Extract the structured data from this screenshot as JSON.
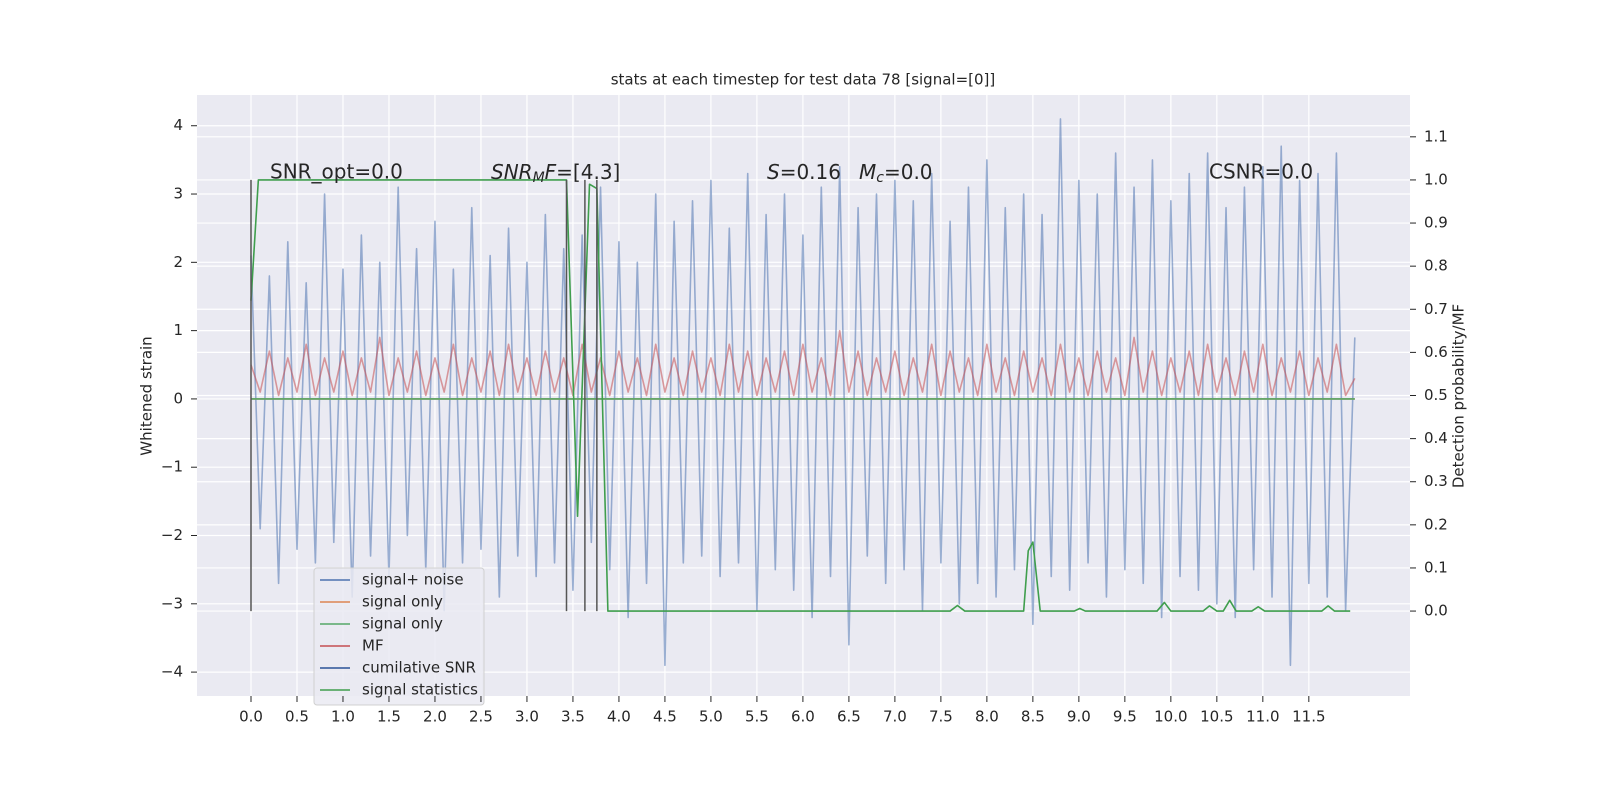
{
  "chart_data": {
    "type": "line",
    "title": "stats at each timestep for test data 78 [signal=[0]]",
    "y_label": "Whitened strain",
    "y2_label": "Detection probability/MF",
    "annotations": {
      "snr_opt": "SNR_opt=0.0",
      "snr_mf": [
        "SNR",
        "M",
        "F",
        "=[4.3]"
      ],
      "s_mc": [
        "S",
        "=0.16",
        "M",
        "c",
        "=0.0"
      ],
      "csnr": "CSNR=0.0"
    },
    "xlim": [
      -0.587,
      12.6
    ],
    "ylim": [
      -4.35,
      4.45
    ],
    "y2lim": [
      -0.197,
      1.197
    ],
    "xticks": [
      {
        "value": 0,
        "label": "0.0"
      },
      0.5,
      {
        "value": 1,
        "label": "1.0"
      },
      1.5,
      {
        "value": 2,
        "label": "2.0"
      },
      2.5,
      {
        "value": 3,
        "label": "3.0"
      },
      3.5,
      {
        "value": 4,
        "label": "4.0"
      },
      4.5,
      {
        "value": 5,
        "label": "5.0"
      },
      5.5,
      {
        "value": 6,
        "label": "6.0"
      },
      6.5,
      {
        "value": 7,
        "label": "7.0"
      },
      7.5,
      {
        "value": 8,
        "label": "8.0"
      },
      8.5,
      {
        "value": 9,
        "label": "9.0"
      },
      9.5,
      {
        "value": 10,
        "label": "10.0"
      },
      10.5,
      {
        "value": 11,
        "label": "11.0"
      },
      11.5
    ],
    "yticks": [
      {
        "value": -4,
        "label": "−4"
      },
      {
        "value": -3,
        "label": "−3"
      },
      {
        "value": -2,
        "label": "−2"
      },
      {
        "value": -1,
        "label": "−1"
      },
      0,
      1,
      2,
      3,
      4
    ],
    "y2ticks": [
      {
        "value": 0,
        "label": "0.0"
      },
      0.1,
      0.2,
      0.3,
      0.4,
      0.5,
      0.6,
      0.7,
      0.8,
      0.9,
      {
        "value": 1,
        "label": "1.0"
      },
      1.1
    ],
    "grid": true,
    "legend": "lower left",
    "x": [
      0,
      0.1,
      0.2,
      0.3,
      0.4,
      0.5,
      0.6,
      0.7,
      0.8,
      0.9,
      1,
      1.1,
      1.2,
      1.3,
      1.4,
      1.5,
      1.6,
      1.7,
      1.8,
      1.9,
      2,
      2.1,
      2.2,
      2.3,
      2.4,
      2.5,
      2.6,
      2.7,
      2.8,
      2.9,
      3,
      3.1,
      3.2,
      3.3,
      3.4,
      3.5,
      3.6,
      3.7,
      3.8,
      3.9,
      4,
      4.1,
      4.2,
      4.3,
      4.4,
      4.5,
      4.6,
      4.7,
      4.8,
      4.9,
      5,
      5.1,
      5.2,
      5.3,
      5.4,
      5.5,
      5.6,
      5.7,
      5.8,
      5.9,
      6,
      6.1,
      6.2,
      6.3,
      6.4,
      6.5,
      6.6,
      6.7,
      6.8,
      6.9,
      7,
      7.1,
      7.2,
      7.3,
      7.4,
      7.5,
      7.6,
      7.7,
      7.8,
      7.9,
      8,
      8.1,
      8.2,
      8.3,
      8.4,
      8.5,
      8.6,
      8.7,
      8.8,
      8.9,
      9,
      9.1,
      9.2,
      9.3,
      9.4,
      9.5,
      9.6,
      9.7,
      9.8,
      9.9,
      10,
      10.1,
      10.2,
      10.3,
      10.4,
      10.5,
      10.6,
      10.7,
      10.8,
      10.9,
      11,
      11.1,
      11.2,
      11.3,
      11.4,
      11.5,
      11.6,
      11.7,
      11.8,
      11.9,
      12
    ],
    "series": [
      {
        "name": "signal+ noise",
        "color": "#4c72b0",
        "opacity": 0.55,
        "values": [
          2.1,
          -1.9,
          1.8,
          -2.7,
          2.3,
          -2.2,
          1.7,
          -2.4,
          3.0,
          -2.1,
          1.9,
          -2.9,
          2.4,
          -2.3,
          2.0,
          -2.6,
          3.1,
          -2.0,
          2.2,
          -2.5,
          2.6,
          -3.1,
          1.9,
          -2.4,
          2.8,
          -2.2,
          2.1,
          -2.9,
          2.5,
          -2.3,
          2.0,
          -2.6,
          2.7,
          -2.4,
          2.2,
          -2.8,
          2.4,
          -2.1,
          3.1,
          -2.5,
          2.3,
          -3.2,
          2.0,
          -2.7,
          3.0,
          -3.9,
          2.6,
          -2.4,
          2.9,
          -2.3,
          3.2,
          -2.6,
          2.5,
          -2.4,
          3.3,
          -3.1,
          2.7,
          -2.5,
          3.0,
          -2.8,
          2.4,
          -3.2,
          3.1,
          -2.6,
          3.4,
          -3.6,
          2.8,
          -2.3,
          3.0,
          -2.7,
          3.2,
          -2.5,
          2.9,
          -3.1,
          3.3,
          -2.4,
          2.6,
          -3.0,
          3.1,
          -2.7,
          3.5,
          -2.9,
          2.8,
          -2.5,
          3.0,
          -3.3,
          2.7,
          -2.6,
          4.1,
          -2.8,
          3.2,
          -2.4,
          3.0,
          -2.9,
          3.6,
          -2.5,
          3.1,
          -2.7,
          3.5,
          -3.2,
          2.9,
          -2.6,
          3.3,
          -2.8,
          3.6,
          -3.0,
          2.8,
          -3.2,
          3.1,
          -2.5,
          3.4,
          -2.9,
          3.7,
          -3.9,
          3.2,
          -2.7,
          3.3,
          -2.9,
          3.6,
          -3.1,
          0.9
        ]
      },
      {
        "name": "signal only",
        "color": "#dd8452",
        "opacity": 1,
        "x": [
          0,
          12
        ],
        "values": [
          0,
          0
        ]
      },
      {
        "name": "signal only",
        "color": "#55a868",
        "opacity": 1,
        "x": [
          0,
          12
        ],
        "values": [
          0,
          0
        ]
      },
      {
        "name": "MF",
        "color": "#c44e52",
        "opacity": 0.55,
        "values": [
          0.5,
          0.1,
          0.7,
          0.05,
          0.6,
          0.1,
          0.8,
          0.05,
          0.6,
          0.1,
          0.7,
          0.05,
          0.6,
          0.1,
          0.9,
          0.05,
          0.6,
          0.1,
          0.7,
          0.05,
          0.6,
          0.1,
          0.8,
          0.05,
          0.6,
          0.1,
          0.7,
          0.05,
          0.8,
          0.1,
          0.6,
          0.05,
          0.7,
          0.1,
          0.6,
          0.05,
          0.8,
          0.1,
          0.6,
          0.05,
          0.7,
          0.1,
          0.6,
          0.05,
          0.8,
          0.1,
          0.6,
          0.05,
          0.7,
          0.1,
          0.6,
          0.05,
          0.8,
          0.1,
          0.7,
          0.05,
          0.6,
          0.1,
          0.7,
          0.05,
          0.8,
          0.1,
          0.6,
          0.05,
          1.0,
          0.1,
          0.7,
          0.05,
          0.6,
          0.1,
          0.7,
          0.05,
          0.6,
          0.1,
          0.8,
          0.05,
          0.7,
          0.1,
          0.6,
          0.05,
          0.8,
          0.1,
          0.6,
          0.05,
          0.7,
          0.1,
          0.6,
          0.05,
          0.8,
          0.1,
          0.6,
          0.05,
          0.7,
          0.1,
          0.6,
          0.05,
          0.9,
          0.1,
          0.7,
          0.05,
          0.6,
          0.1,
          0.7,
          0.05,
          0.8,
          0.1,
          0.6,
          0.05,
          0.7,
          0.1,
          0.8,
          0.05,
          0.6,
          0.1,
          0.7,
          0.05,
          0.6,
          0.1,
          0.8,
          0.05,
          0.3
        ]
      },
      {
        "name": "cumilative SNR",
        "color": "#2a5298"
      },
      {
        "name": "signal statistics",
        "color": "#3f9e4d",
        "opacity": 1,
        "axis": "y2",
        "x": [
          0,
          0.08,
          3.43,
          3.55,
          3.68,
          3.76,
          3.88,
          7.6,
          7.68,
          7.76,
          8.4,
          8.45,
          8.5,
          8.58,
          8.95,
          9.01,
          9.07,
          9.85,
          9.93,
          10.0,
          10.35,
          10.42,
          10.5,
          10.57,
          10.64,
          10.71,
          10.88,
          10.95,
          11.02,
          11.64,
          11.71,
          11.78,
          11.95
        ],
        "values": [
          0.72,
          1.0,
          1.0,
          0.22,
          0.99,
          0.98,
          0.0,
          0.0,
          0.013,
          0.0,
          0.0,
          0.14,
          0.16,
          0.0,
          0.0,
          0.006,
          0.0,
          0.0,
          0.02,
          0.0,
          0.0,
          0.012,
          0.0,
          0.0,
          0.025,
          0.0,
          0.0,
          0.01,
          0.0,
          0.0,
          0.012,
          0.0,
          0.0
        ]
      }
    ],
    "vlines": {
      "color": "#555555",
      "axis": "y2",
      "ymin": 0,
      "ymax": 1,
      "x": [
        0,
        3.43,
        3.63,
        3.76
      ]
    }
  }
}
